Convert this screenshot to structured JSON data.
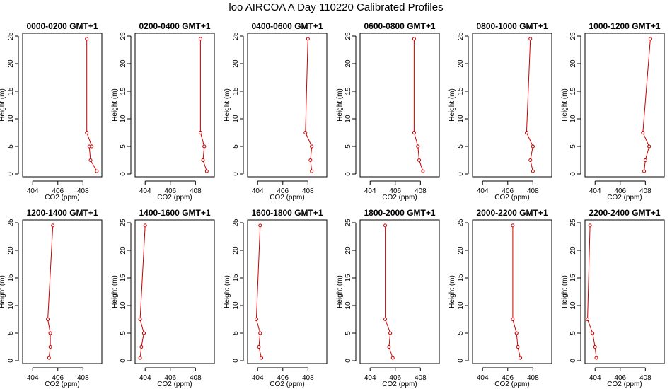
{
  "figure": {
    "title": "loo AIRCOA A  Day 110220  Calibrated Profiles"
  },
  "style": {
    "line_color": "#cc0000",
    "axis_color": "#000000"
  },
  "chart_data": [
    {
      "type": "line",
      "title": "0000-0200 GMT+1",
      "xlabel": "CO2 (ppm)",
      "ylabel": "Height (m)",
      "xlim": [
        403.2,
        409.5
      ],
      "ylim": [
        0,
        25
      ],
      "xticks": [
        404,
        406,
        408
      ],
      "yticks": [
        0,
        5,
        10,
        15,
        20,
        25
      ],
      "grid": false,
      "series": [
        {
          "x": [
            409.1,
            408.6,
            408.5,
            408.7,
            408.3,
            408.3
          ],
          "y": [
            0.5,
            2.5,
            5,
            5,
            7.5,
            24.5
          ]
        }
      ]
    },
    {
      "type": "line",
      "title": "0200-0400 GMT+1",
      "xlabel": "CO2 (ppm)",
      "ylabel": "Height (m)",
      "xlim": [
        403.2,
        409.5
      ],
      "ylim": [
        0,
        25
      ],
      "xticks": [
        404,
        406,
        408
      ],
      "yticks": [
        0,
        5,
        10,
        15,
        20,
        25
      ],
      "grid": false,
      "series": [
        {
          "x": [
            408.9,
            408.6,
            408.7,
            408.7,
            408.4,
            408.4
          ],
          "y": [
            0.5,
            2.5,
            5,
            5,
            7.5,
            24.5
          ]
        }
      ]
    },
    {
      "type": "line",
      "title": "0400-0600 GMT+1",
      "xlabel": "CO2 (ppm)",
      "ylabel": "Height (m)",
      "xlim": [
        403.2,
        409.5
      ],
      "ylim": [
        0,
        25
      ],
      "xticks": [
        404,
        406,
        408
      ],
      "yticks": [
        0,
        5,
        10,
        15,
        20,
        25
      ],
      "grid": false,
      "series": [
        {
          "x": [
            408.3,
            408.2,
            408.3,
            408.3,
            407.8,
            408.0
          ],
          "y": [
            0.5,
            2.5,
            5,
            5,
            7.5,
            24.5
          ]
        }
      ]
    },
    {
      "type": "line",
      "title": "0600-0800 GMT+1",
      "xlabel": "CO2 (ppm)",
      "ylabel": "Height (m)",
      "xlim": [
        403.2,
        409.5
      ],
      "ylim": [
        0,
        25
      ],
      "xticks": [
        404,
        406,
        408
      ],
      "yticks": [
        0,
        5,
        10,
        15,
        20,
        25
      ],
      "grid": false,
      "series": [
        {
          "x": [
            408.2,
            407.9,
            407.8,
            407.8,
            407.5,
            407.5
          ],
          "y": [
            0.5,
            2.5,
            5,
            5,
            7.5,
            24.5
          ]
        }
      ]
    },
    {
      "type": "line",
      "title": "0800-1000 GMT+1",
      "xlabel": "CO2 (ppm)",
      "ylabel": "Height (m)",
      "xlim": [
        403.2,
        409.5
      ],
      "ylim": [
        0,
        25
      ],
      "xticks": [
        404,
        406,
        408
      ],
      "yticks": [
        0,
        5,
        10,
        15,
        20,
        25
      ],
      "grid": false,
      "series": [
        {
          "x": [
            408.0,
            407.8,
            408.0,
            408.0,
            407.5,
            407.8
          ],
          "y": [
            0.5,
            2.5,
            5,
            5,
            7.5,
            24.5
          ]
        }
      ]
    },
    {
      "type": "line",
      "title": "1000-1200 GMT+1",
      "xlabel": "CO2 (ppm)",
      "ylabel": "Height (m)",
      "xlim": [
        403.2,
        409.5
      ],
      "ylim": [
        0,
        25
      ],
      "xticks": [
        404,
        406,
        408
      ],
      "yticks": [
        0,
        5,
        10,
        15,
        20,
        25
      ],
      "grid": false,
      "series": [
        {
          "x": [
            407.9,
            408.0,
            408.3,
            408.3,
            407.8,
            408.4
          ],
          "y": [
            0.5,
            2.5,
            5,
            5,
            7.5,
            24.5
          ]
        }
      ]
    },
    {
      "type": "line",
      "title": "1200-1400 GMT+1",
      "xlabel": "CO2 (ppm)",
      "ylabel": "Height (m)",
      "xlim": [
        403.2,
        409.5
      ],
      "ylim": [
        0,
        25
      ],
      "xticks": [
        404,
        406,
        408
      ],
      "yticks": [
        0,
        5,
        10,
        15,
        20,
        25
      ],
      "grid": false,
      "series": [
        {
          "x": [
            405.3,
            405.4,
            405.4,
            405.4,
            405.2,
            405.6
          ],
          "y": [
            0.5,
            2.5,
            5,
            5,
            7.5,
            24.5
          ]
        }
      ]
    },
    {
      "type": "line",
      "title": "1400-1600 GMT+1",
      "xlabel": "CO2 (ppm)",
      "ylabel": "Height (m)",
      "xlim": [
        403.2,
        409.5
      ],
      "ylim": [
        0,
        25
      ],
      "xticks": [
        404,
        406,
        408
      ],
      "yticks": [
        0,
        5,
        10,
        15,
        20,
        25
      ],
      "grid": false,
      "series": [
        {
          "x": [
            403.6,
            403.7,
            403.9,
            403.9,
            403.6,
            404.0
          ],
          "y": [
            0.5,
            2.5,
            5,
            5,
            7.5,
            24.5
          ]
        }
      ]
    },
    {
      "type": "line",
      "title": "1600-1800 GMT+1",
      "xlabel": "CO2 (ppm)",
      "ylabel": "Height (m)",
      "xlim": [
        403.2,
        409.5
      ],
      "ylim": [
        0,
        25
      ],
      "xticks": [
        404,
        406,
        408
      ],
      "yticks": [
        0,
        5,
        10,
        15,
        20,
        25
      ],
      "grid": false,
      "series": [
        {
          "x": [
            404.3,
            404.1,
            404.2,
            404.2,
            403.9,
            404.2
          ],
          "y": [
            0.5,
            2.5,
            5,
            5,
            7.5,
            24.5
          ]
        }
      ]
    },
    {
      "type": "line",
      "title": "1800-2000 GMT+1",
      "xlabel": "CO2 (ppm)",
      "ylabel": "Height (m)",
      "xlim": [
        403.2,
        409.5
      ],
      "ylim": [
        0,
        25
      ],
      "xticks": [
        404,
        406,
        408
      ],
      "yticks": [
        0,
        5,
        10,
        15,
        20,
        25
      ],
      "grid": false,
      "series": [
        {
          "x": [
            405.8,
            405.5,
            405.6,
            405.6,
            405.2,
            405.2
          ],
          "y": [
            0.5,
            2.5,
            5,
            5,
            7.5,
            24.5
          ]
        }
      ]
    },
    {
      "type": "line",
      "title": "2000-2200 GMT+1",
      "xlabel": "CO2 (ppm)",
      "ylabel": "Height (m)",
      "xlim": [
        403.2,
        409.5
      ],
      "ylim": [
        0,
        25
      ],
      "xticks": [
        404,
        406,
        408
      ],
      "yticks": [
        0,
        5,
        10,
        15,
        20,
        25
      ],
      "grid": false,
      "series": [
        {
          "x": [
            407.0,
            406.8,
            406.7,
            406.7,
            406.4,
            406.4
          ],
          "y": [
            0.5,
            2.5,
            5,
            5,
            7.5,
            24.5
          ]
        }
      ]
    },
    {
      "type": "line",
      "title": "2200-2400 GMT+1",
      "xlabel": "CO2 (ppm)",
      "ylabel": "Height (m)",
      "xlim": [
        403.2,
        409.5
      ],
      "ylim": [
        0,
        25
      ],
      "xticks": [
        404,
        406,
        408
      ],
      "yticks": [
        0,
        5,
        10,
        15,
        20,
        25
      ],
      "grid": false,
      "series": [
        {
          "x": [
            404.1,
            404.0,
            403.8,
            403.8,
            403.4,
            403.6
          ],
          "y": [
            0.5,
            2.5,
            5,
            5,
            7.5,
            24.5
          ]
        }
      ]
    }
  ]
}
